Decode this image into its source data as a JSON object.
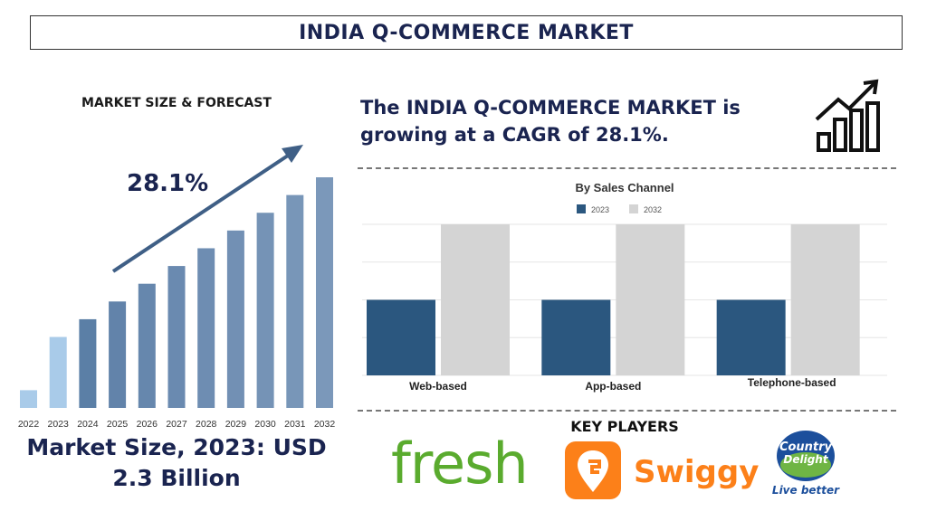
{
  "header": {
    "title": "INDIA Q-COMMERCE MARKET"
  },
  "left_panel": {
    "heading": "MARKET SIZE & FORECAST",
    "cagr": "28.1%",
    "market_size_text": "Market Size, 2023: USD 2.3 Billion"
  },
  "right_panel": {
    "growth_text": "The INDIA Q-COMMERCE MARKET is growing at a CAGR of 28.1%.",
    "growth_icon": "growth-chart-icon",
    "key_players_heading": "KEY PLAYERS",
    "players": [
      {
        "name": "fresh",
        "color": "#5aab2e"
      },
      {
        "name": "Swiggy",
        "color": "#fc8019",
        "icon": "swiggy-logo-icon"
      },
      {
        "name": "Country Delight",
        "tagline": "Live better",
        "icon": "country-delight-logo-icon"
      }
    ]
  },
  "chart_data": [
    {
      "type": "bar",
      "title": "MARKET SIZE & FORECAST",
      "categories": [
        "2022",
        "2023",
        "2024",
        "2025",
        "2026",
        "2027",
        "2028",
        "2029",
        "2030",
        "2031",
        "2032"
      ],
      "values": [
        1,
        4,
        5,
        6,
        7,
        8,
        9,
        10,
        11,
        12,
        13
      ],
      "colors": [
        "#a9cbe9",
        "#a9cbe9",
        "#5b7fa6",
        "#6283aa",
        "#6687ad",
        "#6a8ab0",
        "#6e8db2",
        "#7290b4",
        "#7593b6",
        "#7896b8",
        "#7b98ba"
      ],
      "ylim": [
        0,
        13
      ],
      "grid": false,
      "legend": "none",
      "annotation": "28.1%"
    },
    {
      "type": "bar",
      "title": "By Sales Channel",
      "categories": [
        "Web-based",
        "App-based",
        "Telephone-based"
      ],
      "series": [
        {
          "name": "2023",
          "values": [
            0.5,
            0.5,
            0.5
          ],
          "color": "#2b577f"
        },
        {
          "name": "2032",
          "values": [
            1.0,
            1.0,
            1.0
          ],
          "color": "#d4d4d4"
        }
      ],
      "ylim": [
        0,
        1.0
      ],
      "grid": true,
      "legend": "top-center"
    }
  ]
}
